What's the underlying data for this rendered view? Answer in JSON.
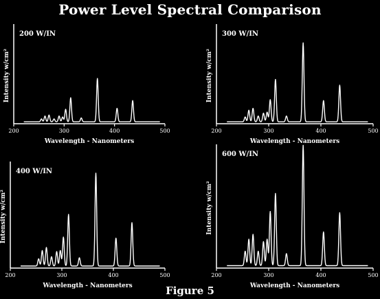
{
  "title": "Power Level Spectral Comparison",
  "caption": "Figure 5",
  "chart_data": [
    {
      "type": "line",
      "title": "200 W/IN",
      "xlabel": "Wavelength - Nanometers",
      "ylabel": "Intensity w/cm²",
      "xlim": [
        200,
        500
      ],
      "ylim": [
        0,
        100
      ],
      "xticks": [
        "200",
        "300",
        "400",
        "500"
      ],
      "grid": false,
      "baseline": 2,
      "color": "#ffffff",
      "peaks": [
        {
          "x": 255,
          "h": 3
        },
        {
          "x": 262,
          "h": 6
        },
        {
          "x": 270,
          "h": 7
        },
        {
          "x": 280,
          "h": 3
        },
        {
          "x": 290,
          "h": 6
        },
        {
          "x": 297,
          "h": 5
        },
        {
          "x": 303,
          "h": 13
        },
        {
          "x": 313,
          "h": 25
        },
        {
          "x": 334,
          "h": 4
        },
        {
          "x": 366,
          "h": 45
        },
        {
          "x": 405,
          "h": 14
        },
        {
          "x": 436,
          "h": 22
        }
      ]
    },
    {
      "type": "line",
      "title": "300 W/IN",
      "xlabel": "Wavelength - Nanometers",
      "ylabel": "Intensity w/cm²",
      "xlim": [
        200,
        500
      ],
      "ylim": [
        0,
        100
      ],
      "xticks": [
        "200",
        "300",
        "400",
        "500"
      ],
      "grid": false,
      "baseline": 2,
      "color": "#ffffff",
      "peaks": [
        {
          "x": 255,
          "h": 5
        },
        {
          "x": 262,
          "h": 12
        },
        {
          "x": 270,
          "h": 14
        },
        {
          "x": 280,
          "h": 6
        },
        {
          "x": 290,
          "h": 9
        },
        {
          "x": 297,
          "h": 10
        },
        {
          "x": 303,
          "h": 23
        },
        {
          "x": 313,
          "h": 44
        },
        {
          "x": 334,
          "h": 6
        },
        {
          "x": 366,
          "h": 82
        },
        {
          "x": 405,
          "h": 22
        },
        {
          "x": 436,
          "h": 38
        }
      ]
    },
    {
      "type": "line",
      "title": "400 W/IN",
      "xlabel": "Wavelength - Nanometers",
      "ylabel": "Intensity w/cm²",
      "xlim": [
        200,
        500
      ],
      "ylim": [
        0,
        100
      ],
      "xticks": [
        "200",
        "300",
        "400",
        "500"
      ],
      "grid": false,
      "baseline": 2,
      "color": "#ffffff",
      "peaks": [
        {
          "x": 255,
          "h": 7
        },
        {
          "x": 262,
          "h": 15
        },
        {
          "x": 270,
          "h": 18
        },
        {
          "x": 280,
          "h": 9
        },
        {
          "x": 290,
          "h": 14
        },
        {
          "x": 297,
          "h": 15
        },
        {
          "x": 303,
          "h": 28
        },
        {
          "x": 313,
          "h": 50
        },
        {
          "x": 334,
          "h": 8
        },
        {
          "x": 366,
          "h": 90
        },
        {
          "x": 405,
          "h": 27
        },
        {
          "x": 436,
          "h": 42
        }
      ]
    },
    {
      "type": "line",
      "title": "600 W/IN",
      "xlabel": "Wavelength - Nanometers",
      "ylabel": "Intensity w/cm²",
      "xlim": [
        200,
        500
      ],
      "ylim": [
        0,
        100
      ],
      "xticks": [
        "200",
        "300",
        "400",
        "500"
      ],
      "grid": false,
      "baseline": 2,
      "color": "#ffffff",
      "peaks": [
        {
          "x": 255,
          "h": 12
        },
        {
          "x": 262,
          "h": 22
        },
        {
          "x": 270,
          "h": 26
        },
        {
          "x": 280,
          "h": 12
        },
        {
          "x": 290,
          "h": 20
        },
        {
          "x": 297,
          "h": 22
        },
        {
          "x": 303,
          "h": 45
        },
        {
          "x": 313,
          "h": 60
        },
        {
          "x": 334,
          "h": 10
        },
        {
          "x": 366,
          "h": 100
        },
        {
          "x": 405,
          "h": 28
        },
        {
          "x": 436,
          "h": 44
        }
      ]
    }
  ]
}
